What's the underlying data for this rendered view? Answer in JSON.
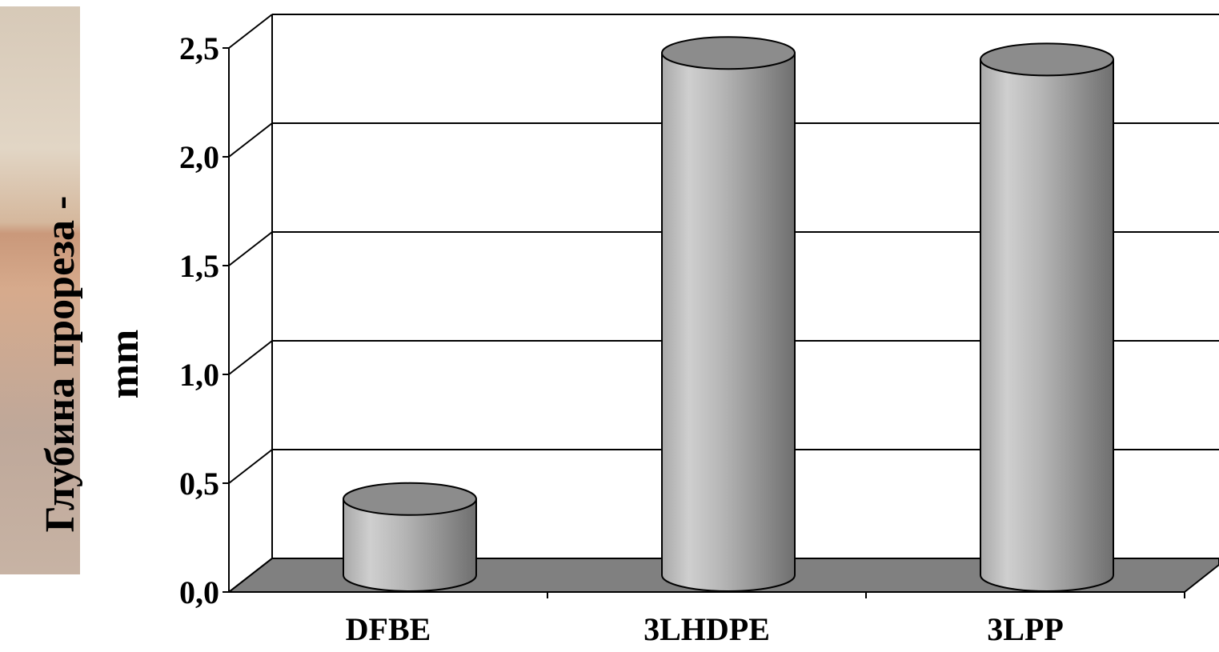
{
  "chart_data": {
    "type": "bar",
    "style": "3d-cylinder",
    "categories": [
      "DFBE",
      "3LHDPE",
      "3LPP"
    ],
    "values": [
      0.35,
      2.4,
      2.37
    ],
    "ylabel": "Глубина прореза - mm",
    "ylabel_lines": [
      "Глубина прореза -",
      "mm"
    ],
    "ylim": [
      0,
      2.5
    ],
    "yticks": [
      "0,0",
      "0,5",
      "1,0",
      "1,5",
      "2,0",
      "2,5"
    ],
    "grid": true,
    "legend": "none",
    "colors": {
      "bar": "#b0b0b0",
      "bar_top": "#8c8c8c",
      "floor": "#808080"
    }
  }
}
